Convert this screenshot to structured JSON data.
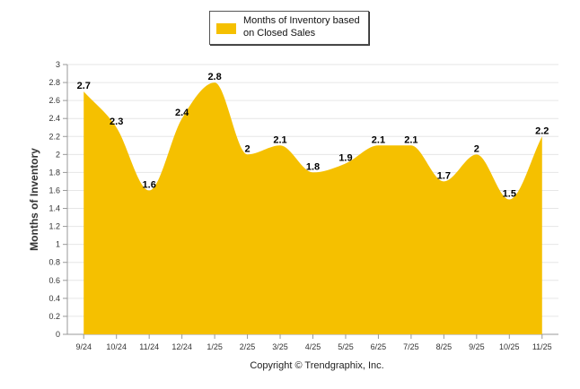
{
  "legend": {
    "label": "Months of Inventory based on Closed Sales",
    "color": "#F5C000"
  },
  "footer": {
    "copyright": "Copyright © Trendgraphix, Inc."
  },
  "chart_data": {
    "type": "area",
    "title": "",
    "xlabel": "",
    "ylabel": "Months of Inventory",
    "ylim": [
      0,
      3
    ],
    "yticks": [
      0,
      0.2,
      0.4,
      0.6,
      0.8,
      1,
      1.2,
      1.4,
      1.6,
      1.8,
      2,
      2.2,
      2.4,
      2.6,
      2.8,
      3
    ],
    "grid": true,
    "legend_position": "top",
    "categories": [
      "9/24",
      "10/24",
      "11/24",
      "12/24",
      "1/25",
      "2/25",
      "3/25",
      "4/25",
      "5/25",
      "6/25",
      "7/25",
      "8/25",
      "9/25",
      "10/25",
      "11/25"
    ],
    "series": [
      {
        "name": "Months of Inventory based on Closed Sales",
        "color": "#F5C000",
        "values": [
          2.7,
          2.3,
          1.6,
          2.4,
          2.8,
          2.0,
          2.1,
          1.8,
          1.9,
          2.1,
          2.1,
          1.7,
          2.0,
          1.5,
          2.2
        ]
      }
    ]
  }
}
